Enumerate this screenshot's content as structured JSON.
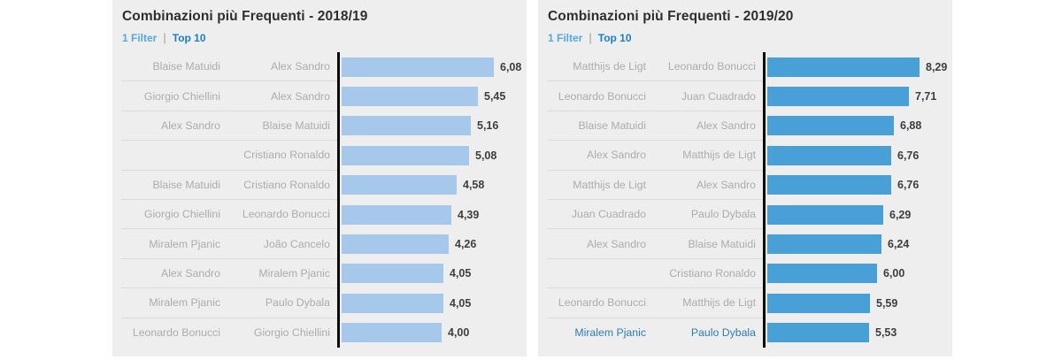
{
  "chart_data": [
    {
      "type": "bar",
      "orientation": "horizontal",
      "title": "Combinazioni più Frequenti - 2018/19",
      "filter_label": "1 Filter",
      "filter_sep": "|",
      "top_label": "Top 10",
      "bar_color": "#a5c8eb",
      "filter_link_color": "#56a7db",
      "top_link_color": "#1a7ec9",
      "highlight_color": "#2b7cbf",
      "value_format": "comma-decimal",
      "xlim": [
        0,
        8.5
      ],
      "rows": [
        {
          "player1": "Blaise Matuidi",
          "player2": "Alex Sandro",
          "value": 6.08,
          "label": "6,08",
          "highlighted": false
        },
        {
          "player1": "Giorgio Chiellini",
          "player2": "Alex Sandro",
          "value": 5.45,
          "label": "5,45",
          "highlighted": false
        },
        {
          "player1": "Alex Sandro",
          "player2": "Blaise Matuidi",
          "value": 5.16,
          "label": "5,16",
          "highlighted": false
        },
        {
          "player1": "",
          "player2": "Cristiano Ronaldo",
          "value": 5.08,
          "label": "5,08",
          "highlighted": false
        },
        {
          "player1": "Blaise Matuidi",
          "player2": "Cristiano Ronaldo",
          "value": 4.58,
          "label": "4,58",
          "highlighted": false
        },
        {
          "player1": "Giorgio Chiellini",
          "player2": "Leonardo Bonucci",
          "value": 4.39,
          "label": "4,39",
          "highlighted": false
        },
        {
          "player1": "Miralem Pjanic",
          "player2": "João Cancelo",
          "value": 4.26,
          "label": "4,26",
          "highlighted": false
        },
        {
          "player1": "Alex Sandro",
          "player2": "Miralem Pjanic",
          "value": 4.05,
          "label": "4,05",
          "highlighted": false
        },
        {
          "player1": "Miralem Pjanic",
          "player2": "Paulo Dybala",
          "value": 4.05,
          "label": "4,05",
          "highlighted": false
        },
        {
          "player1": "Leonardo Bonucci",
          "player2": "Giorgio Chiellini",
          "value": 4.0,
          "label": "4,00",
          "highlighted": false
        }
      ]
    },
    {
      "type": "bar",
      "orientation": "horizontal",
      "title": "Combinazioni più Frequenti - 2019/20",
      "filter_label": "1 Filter",
      "filter_sep": "|",
      "top_label": "Top 10",
      "bar_color": "#49a0d7",
      "filter_link_color": "#56a7db",
      "top_link_color": "#1a7ec9",
      "highlight_color": "#2b7cbf",
      "value_format": "comma-decimal",
      "xlim": [
        0,
        8.5
      ],
      "rows": [
        {
          "player1": "Matthijs de Ligt",
          "player2": "Leonardo Bonucci",
          "value": 8.29,
          "label": "8,29",
          "highlighted": false
        },
        {
          "player1": "Leonardo Bonucci",
          "player2": "Juan Cuadrado",
          "value": 7.71,
          "label": "7,71",
          "highlighted": false
        },
        {
          "player1": "Blaise Matuidi",
          "player2": "Alex Sandro",
          "value": 6.88,
          "label": "6,88",
          "highlighted": false
        },
        {
          "player1": "Alex Sandro",
          "player2": "Matthijs de Ligt",
          "value": 6.76,
          "label": "6,76",
          "highlighted": false
        },
        {
          "player1": "Matthijs de Ligt",
          "player2": "Alex Sandro",
          "value": 6.76,
          "label": "6,76",
          "highlighted": false
        },
        {
          "player1": "Juan Cuadrado",
          "player2": "Paulo Dybala",
          "value": 6.29,
          "label": "6,29",
          "highlighted": false
        },
        {
          "player1": "Alex Sandro",
          "player2": "Blaise Matuidi",
          "value": 6.24,
          "label": "6,24",
          "highlighted": false
        },
        {
          "player1": "",
          "player2": "Cristiano Ronaldo",
          "value": 6.0,
          "label": "6,00",
          "highlighted": false
        },
        {
          "player1": "Leonardo Bonucci",
          "player2": "Matthijs de Ligt",
          "value": 5.59,
          "label": "5,59",
          "highlighted": false
        },
        {
          "player1": "Miralem Pjanic",
          "player2": "Paulo Dybala",
          "value": 5.53,
          "label": "5,53",
          "highlighted": true
        }
      ]
    }
  ]
}
